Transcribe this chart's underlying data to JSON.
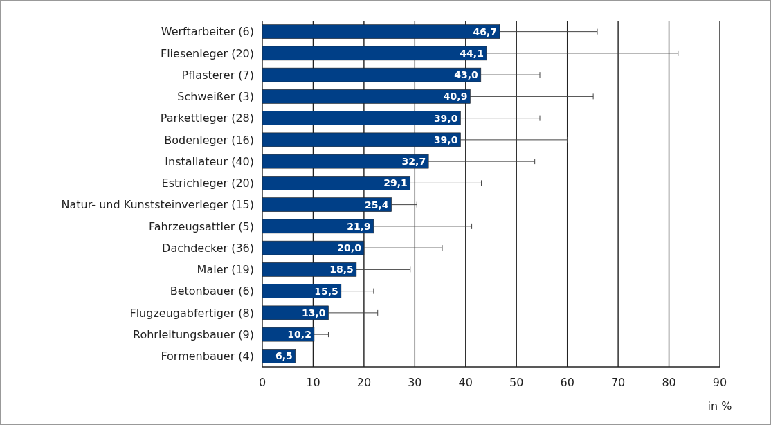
{
  "chart_data": {
    "type": "bar",
    "orientation": "horizontal",
    "xlabel": "in %",
    "categories": [
      "Werftarbeiter (6)",
      "Fliesenleger (20)",
      "Pflasterer (7)",
      "Schweißer (3)",
      "Parkettleger (28)",
      "Bodenleger (16)",
      "Installateur (40)",
      "Estrichleger (20)",
      "Natur- und Kunststeinverleger (15)",
      "Fahrzeugsattler (5)",
      "Dachdecker (36)",
      "Maler (19)",
      "Betonbauer (6)",
      "Flugzeugabfertiger (8)",
      "Rohrleitungsbauer (9)",
      "Formenbauer (4)"
    ],
    "values": [
      46.7,
      44.1,
      43.0,
      40.9,
      39.0,
      39.0,
      32.7,
      29.1,
      25.4,
      21.9,
      20.0,
      18.5,
      15.5,
      13.0,
      10.2,
      6.5
    ],
    "value_labels": [
      "46,7",
      "44,1",
      "43,0",
      "40,9",
      "39,0",
      "39,0",
      "32,7",
      "29,1",
      "25,4",
      "21,9",
      "20,0",
      "18,5",
      "15,5",
      "13,0",
      "10,2",
      "6,5"
    ],
    "errors": [
      [
        46.7,
        65.9
      ],
      [
        44.1,
        81.8
      ],
      [
        43.0,
        54.6
      ],
      [
        40.9,
        65.1
      ],
      [
        39.0,
        54.6
      ],
      [
        39.0,
        60.0
      ],
      [
        32.7,
        53.6
      ],
      [
        29.1,
        43.1
      ],
      [
        25.4,
        30.4
      ],
      [
        21.9,
        41.2
      ],
      [
        20.0,
        35.4
      ],
      [
        18.5,
        29.1
      ],
      [
        15.5,
        21.9
      ],
      [
        13.0,
        22.7
      ],
      [
        10.2,
        13.0
      ],
      null
    ],
    "color": "#003f87",
    "xlim": [
      0,
      90
    ],
    "xticks": [
      0,
      10,
      20,
      30,
      40,
      50,
      60,
      70,
      80,
      90
    ],
    "grid": "x"
  }
}
